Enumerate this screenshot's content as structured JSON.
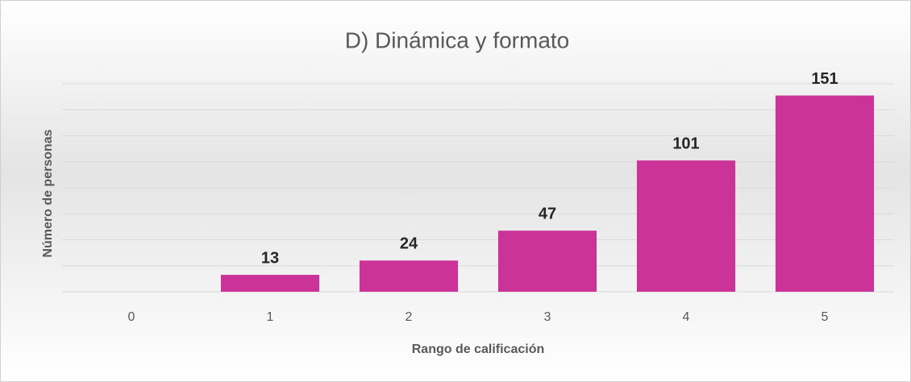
{
  "chart_data": {
    "type": "bar",
    "title": "D) Dinámica y formato",
    "x_label": "Rango de calificación",
    "y_label": "Número de personas",
    "categories": [
      "0",
      "1",
      "2",
      "3",
      "4",
      "5"
    ],
    "values": [
      0,
      13,
      24,
      47,
      101,
      151
    ],
    "color": "#cc3399",
    "ylim": [
      0,
      160
    ],
    "yticks": [
      0,
      20,
      40,
      60,
      80,
      100,
      120,
      140,
      160
    ],
    "grid": true,
    "ytick_labels": false,
    "data_labels": true
  }
}
